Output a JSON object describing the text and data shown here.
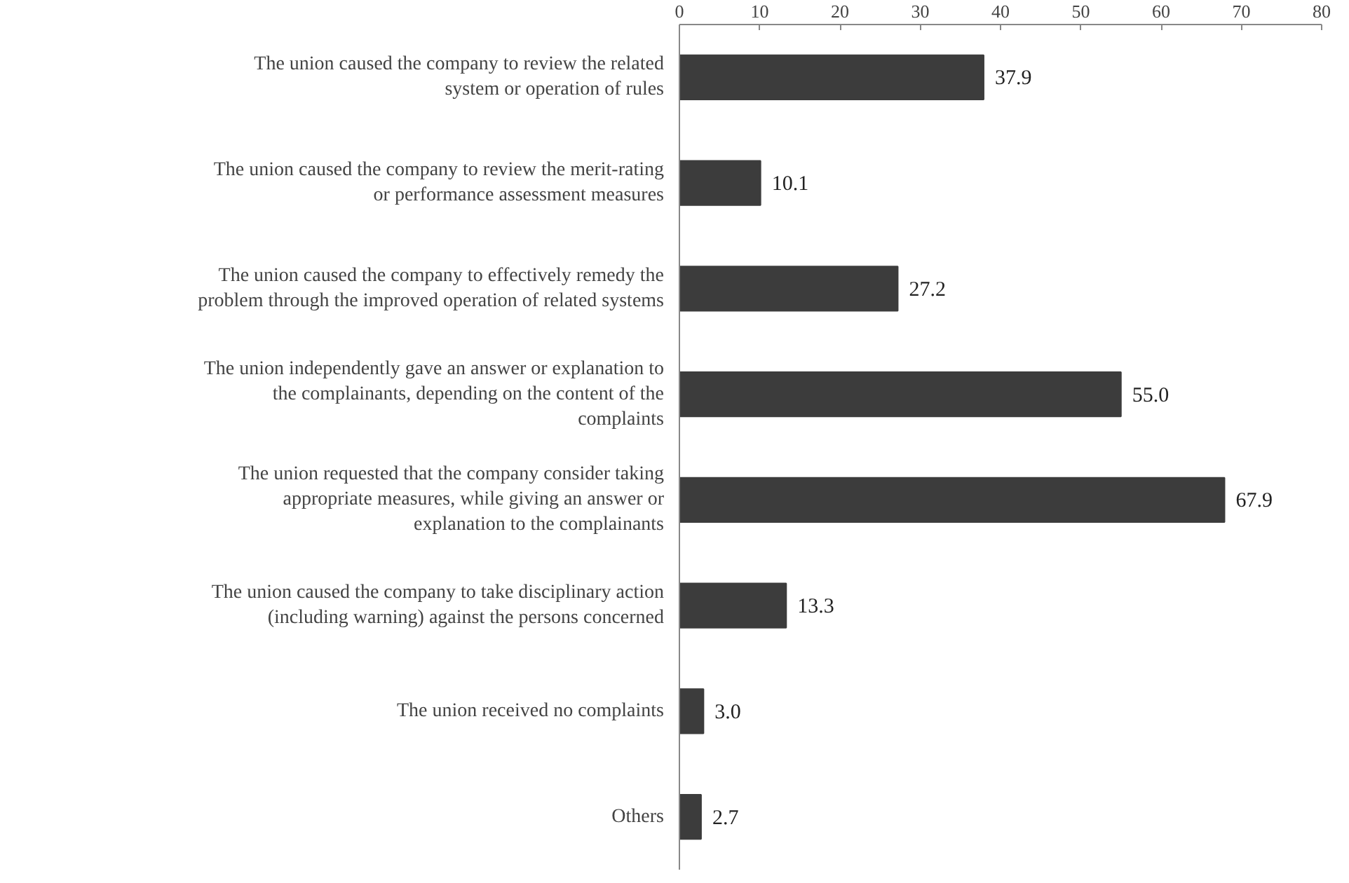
{
  "chart_data": {
    "type": "bar",
    "orientation": "horizontal",
    "categories": [
      "The union caused the company to review the related\nsystem or operation of rules",
      "The union caused the company to review the merit-rating\nor performance assessment measures",
      "The union caused the company to effectively remedy the\nproblem through the improved operation of related systems",
      "The union independently gave an answer or explanation to\nthe complainants, depending on the content of the\ncomplaints",
      "The union requested that the company consider taking\nappropriate measures, while giving an answer or\nexplanation to the complainants",
      "The union caused the company to take disciplinary action\n(including warning) against the persons concerned",
      "The union received no complaints",
      "Others"
    ],
    "values": [
      37.9,
      10.1,
      27.2,
      55.0,
      67.9,
      13.3,
      3.0,
      2.7
    ],
    "value_labels": [
      "37.9",
      "10.1",
      "27.2",
      "55.0",
      "67.9",
      "13.3",
      "3.0",
      "2.7"
    ],
    "color": "#3c3c3c",
    "xlim": [
      0,
      80
    ],
    "xticks": [
      0,
      10,
      20,
      30,
      40,
      50,
      60,
      70,
      80
    ],
    "grid": false
  }
}
